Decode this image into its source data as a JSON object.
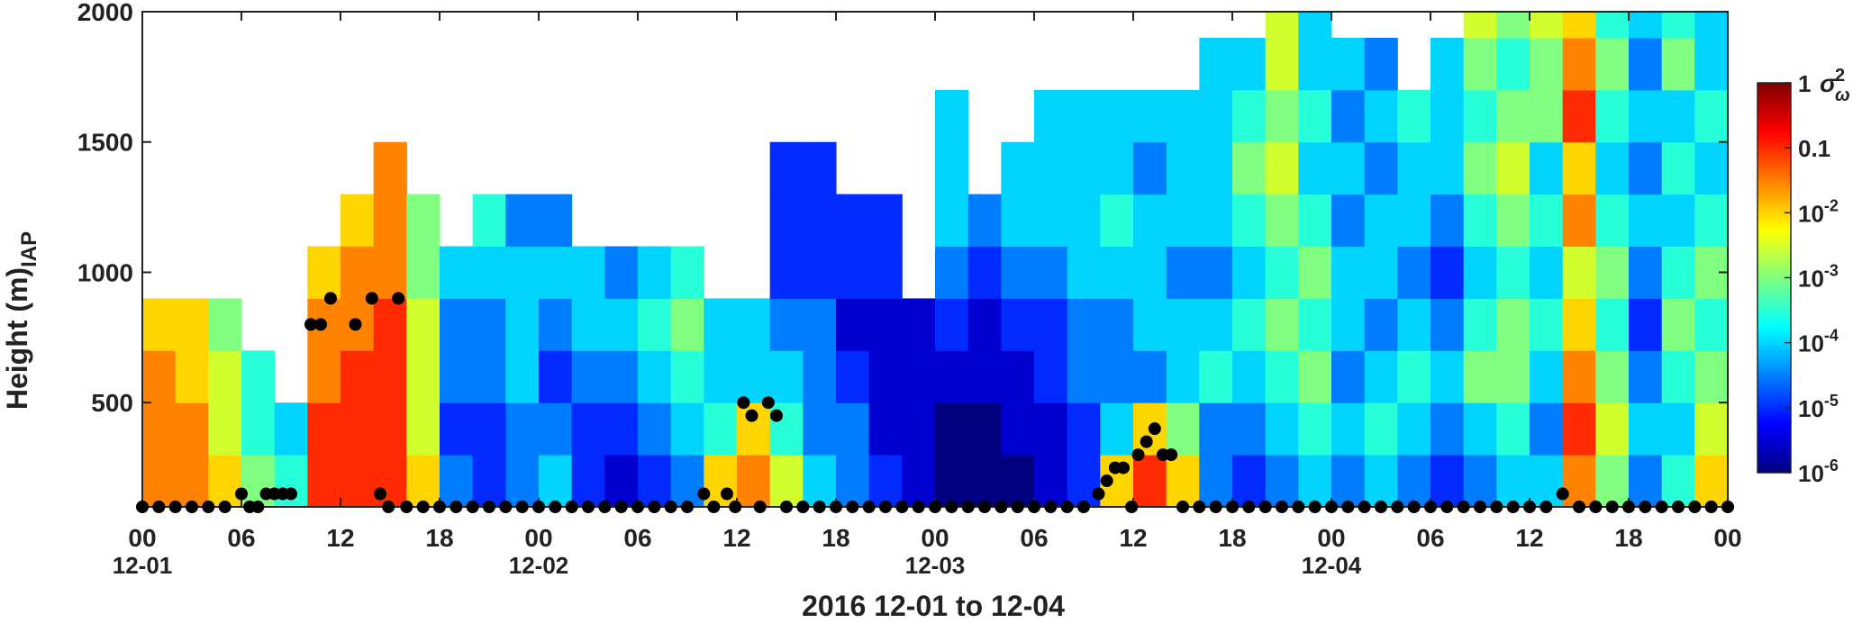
{
  "chart_data": {
    "type": "heatmap",
    "xlabel": "2016 12-01 to 12-04",
    "ylabel": "Height (m)",
    "ylabel_sub": "IAP",
    "xlim": [
      0,
      96
    ],
    "ylim": [
      100,
      2000
    ],
    "yticks": [
      500,
      1000,
      1500,
      2000
    ],
    "xticks": [
      {
        "value": 0,
        "label": "00"
      },
      {
        "value": 6,
        "label": "06"
      },
      12,
      18,
      {
        "value": 24,
        "label": "00"
      },
      {
        "value": 30,
        "label": "06"
      },
      {
        "value": 36,
        "label": "12"
      },
      {
        "value": 42,
        "label": "18"
      },
      {
        "value": 48,
        "label": "00"
      },
      {
        "value": 54,
        "label": "06"
      },
      {
        "value": 60,
        "label": "12"
      },
      {
        "value": 66,
        "label": "18"
      },
      {
        "value": 72,
        "label": "00"
      },
      {
        "value": 78,
        "label": "06"
      },
      {
        "value": 84,
        "label": "12"
      },
      {
        "value": 90,
        "label": "18"
      },
      {
        "value": 96,
        "label": "00"
      }
    ],
    "date_labels": [
      {
        "value": 0,
        "label": "12-01"
      },
      {
        "value": 24,
        "label": "12-02"
      },
      {
        "value": 48,
        "label": "12-03"
      },
      {
        "value": 72,
        "label": "12-04"
      }
    ],
    "colorbar": {
      "scale": "log",
      "clim": [
        1e-06,
        1
      ],
      "label": {
        "base": "σ",
        "sub": "ω",
        "sup": "2"
      },
      "ticks": [
        1,
        0.1,
        {
          "value": 0.01,
          "label": "10",
          "sup": "-2"
        },
        {
          "value": 0.001,
          "label": "10",
          "sup": "-3"
        },
        {
          "value": 0.0001,
          "label": "10",
          "sup": "-4"
        },
        {
          "value": 1e-05,
          "label": "10",
          "sup": "-5"
        },
        {
          "value": 1e-06,
          "label": "10",
          "sup": "-6"
        }
      ]
    },
    "x_bins": [
      0,
      2,
      4,
      6,
      8,
      10,
      12,
      14,
      16,
      18,
      20,
      22,
      24,
      26,
      28,
      30,
      32,
      34,
      36,
      38,
      40,
      42,
      44,
      46,
      48,
      50,
      52,
      54,
      56,
      58,
      60,
      62,
      64,
      66,
      68,
      70,
      72,
      74,
      76,
      78,
      80,
      82,
      84,
      86,
      88,
      90,
      92,
      94,
      96
    ],
    "y_bins": [
      100,
      300,
      500,
      700,
      900,
      1100,
      1300,
      1500,
      1700,
      1900,
      2000
    ],
    "values": [
      [
        0.03,
        0.03,
        0.03,
        0.01,
        null,
        null,
        null,
        null,
        null,
        null
      ],
      [
        0.03,
        0.03,
        0.01,
        0.01,
        null,
        null,
        null,
        null,
        null,
        null
      ],
      [
        0.01,
        0.003,
        0.003,
        0.001,
        null,
        null,
        null,
        null,
        null,
        null
      ],
      [
        0.001,
        0.0003,
        0.0003,
        null,
        null,
        null,
        null,
        null,
        null,
        null
      ],
      [
        0.0003,
        0.0001,
        null,
        null,
        null,
        null,
        null,
        null,
        null,
        null
      ],
      [
        0.1,
        0.1,
        0.03,
        0.03,
        0.01,
        null,
        null,
        null,
        null,
        null
      ],
      [
        0.1,
        0.1,
        0.1,
        0.03,
        0.03,
        0.01,
        null,
        null,
        null,
        null
      ],
      [
        0.1,
        0.1,
        0.1,
        0.1,
        0.03,
        0.03,
        0.03,
        null,
        null,
        null
      ],
      [
        0.01,
        0.003,
        0.003,
        0.003,
        0.001,
        0.001,
        null,
        null,
        null,
        null
      ],
      [
        3e-05,
        1e-05,
        3e-05,
        3e-05,
        0.0001,
        null,
        null,
        null,
        null,
        null
      ],
      [
        1e-05,
        1e-05,
        3e-05,
        3e-05,
        0.0001,
        0.0003,
        null,
        null,
        null,
        null
      ],
      [
        3e-05,
        3e-05,
        0.0001,
        0.0001,
        0.0001,
        3e-05,
        null,
        null,
        null,
        null
      ],
      [
        0.0001,
        3e-05,
        1e-05,
        3e-05,
        0.0001,
        3e-05,
        null,
        null,
        null,
        null
      ],
      [
        1e-05,
        1e-05,
        3e-05,
        0.0001,
        0.0001,
        null,
        null,
        null,
        null,
        null
      ],
      [
        3e-06,
        1e-05,
        3e-05,
        0.0001,
        3e-05,
        null,
        null,
        null,
        null,
        null
      ],
      [
        1e-05,
        3e-05,
        0.0001,
        0.0003,
        0.0001,
        null,
        null,
        null,
        null,
        null
      ],
      [
        3e-05,
        0.0001,
        0.0003,
        0.001,
        0.0003,
        null,
        null,
        null,
        null,
        null
      ],
      [
        0.01,
        0.0003,
        0.0001,
        0.0001,
        null,
        null,
        null,
        null,
        null,
        null
      ],
      [
        0.03,
        0.01,
        0.0001,
        0.0001,
        null,
        null,
        null,
        null,
        null,
        null
      ],
      [
        0.003,
        0.0003,
        0.0001,
        3e-05,
        1e-05,
        1e-05,
        1e-05,
        null,
        null,
        null
      ],
      [
        0.0001,
        3e-05,
        3e-05,
        3e-05,
        1e-05,
        1e-05,
        1e-05,
        null,
        null,
        null
      ],
      [
        3e-05,
        3e-05,
        1e-05,
        3e-06,
        1e-05,
        1e-05,
        null,
        null,
        null,
        null
      ],
      [
        1e-05,
        3e-06,
        3e-06,
        3e-06,
        1e-05,
        1e-05,
        null,
        null,
        null,
        null
      ],
      [
        3e-06,
        3e-06,
        3e-06,
        3e-06,
        null,
        null,
        null,
        null,
        null,
        null
      ],
      [
        1e-06,
        1e-06,
        3e-06,
        1e-05,
        3e-05,
        0.0001,
        0.0001,
        0.0001,
        null,
        null
      ],
      [
        1e-06,
        1e-06,
        3e-06,
        3e-06,
        1e-05,
        3e-05,
        null,
        null,
        null,
        null
      ],
      [
        1e-06,
        3e-06,
        3e-06,
        1e-05,
        3e-05,
        0.0001,
        0.0001,
        null,
        null,
        null
      ],
      [
        3e-06,
        3e-06,
        1e-05,
        1e-05,
        3e-05,
        0.0001,
        0.0001,
        0.0001,
        null,
        null
      ],
      [
        1e-05,
        1e-05,
        3e-05,
        3e-05,
        0.0001,
        0.0001,
        0.0001,
        0.0001,
        null,
        null
      ],
      [
        0.01,
        0.0001,
        3e-05,
        3e-05,
        0.0001,
        0.0003,
        0.0001,
        0.0001,
        null,
        null
      ],
      [
        0.1,
        0.01,
        3e-05,
        0.0001,
        0.0001,
        0.0001,
        3e-05,
        0.0001,
        null,
        null
      ],
      [
        0.01,
        0.001,
        0.0001,
        0.0001,
        3e-05,
        0.0001,
        0.0001,
        0.0001,
        null,
        null
      ],
      [
        3e-05,
        3e-05,
        0.0003,
        0.0001,
        3e-05,
        0.0001,
        0.0001,
        0.0001,
        0.0001,
        null
      ],
      [
        1e-05,
        3e-05,
        0.0001,
        0.0003,
        0.0001,
        0.0003,
        0.001,
        0.0003,
        0.0001,
        null
      ],
      [
        3e-05,
        0.0001,
        0.0003,
        0.001,
        0.0003,
        0.001,
        0.003,
        0.001,
        0.003,
        0.003
      ],
      [
        0.0001,
        0.0003,
        0.001,
        0.0003,
        0.001,
        0.0003,
        0.0001,
        0.0003,
        0.0001,
        0.0001
      ],
      [
        3e-05,
        0.0001,
        3e-05,
        0.0001,
        0.0001,
        3e-05,
        0.0001,
        3e-05,
        0.0001,
        null
      ],
      [
        0.0001,
        0.0003,
        0.0001,
        3e-05,
        0.0001,
        0.0001,
        3e-05,
        0.0001,
        3e-05,
        null
      ],
      [
        3e-05,
        0.0001,
        0.0003,
        0.0001,
        3e-05,
        0.0001,
        0.0001,
        0.0003,
        null,
        null
      ],
      [
        1e-05,
        3e-05,
        0.0001,
        3e-05,
        1e-05,
        3e-05,
        0.0001,
        0.0001,
        0.0001,
        null
      ],
      [
        3e-05,
        0.0001,
        0.001,
        0.0003,
        0.0001,
        0.0003,
        0.001,
        0.0003,
        0.001,
        0.003
      ],
      [
        0.0001,
        0.0003,
        0.001,
        0.001,
        0.0003,
        0.001,
        0.003,
        0.001,
        0.0003,
        0.001
      ],
      [
        0.0001,
        3e-05,
        0.0001,
        0.0003,
        0.0001,
        0.0003,
        0.0001,
        0.001,
        0.001,
        0.003
      ],
      [
        0.03,
        0.1,
        0.03,
        0.01,
        0.003,
        0.03,
        0.01,
        0.1,
        0.03,
        0.01
      ],
      [
        0.001,
        0.003,
        0.001,
        0.0003,
        0.001,
        0.0003,
        0.0001,
        0.0003,
        0.001,
        0.0003
      ],
      [
        3e-05,
        0.0001,
        3e-05,
        1e-05,
        3e-05,
        0.0001,
        3e-05,
        0.0001,
        3e-05,
        0.0001
      ],
      [
        0.0003,
        0.0001,
        0.0003,
        0.001,
        0.0003,
        0.0001,
        0.0003,
        0.0001,
        0.001,
        0.0003
      ],
      [
        0.01,
        0.003,
        0.001,
        0.0003,
        0.001,
        0.0003,
        0.0001,
        0.0003,
        0.0001,
        0.0001
      ]
    ],
    "points": {
      "color": "#000000",
      "x": [
        0,
        1,
        2,
        3,
        4,
        5,
        6,
        6.5,
        7,
        7.5,
        8,
        8.5,
        9,
        10.2,
        10.8,
        11.4,
        12.9,
        13.9,
        14.4,
        14.9,
        15.5,
        16,
        17,
        18,
        19,
        20,
        21,
        22,
        23,
        24,
        25,
        26,
        27,
        28,
        29,
        30,
        31,
        32,
        33,
        34,
        34.6,
        35.4,
        35.9,
        36.4,
        36.9,
        37.4,
        37.9,
        38.4,
        39,
        40,
        41,
        42,
        43,
        44,
        45,
        46,
        47,
        48,
        49,
        50,
        51,
        52,
        53,
        54,
        55,
        56,
        57,
        57.9,
        58.4,
        58.9,
        59.4,
        59.9,
        60.3,
        60.8,
        61.3,
        61.8,
        62.3,
        63,
        64,
        65,
        66,
        67,
        68,
        69,
        70,
        71,
        72,
        73,
        74,
        75,
        76,
        77,
        78,
        79,
        80,
        81,
        82,
        83,
        84,
        85,
        86,
        87,
        88,
        89,
        90,
        91,
        92,
        93,
        94,
        95,
        96
      ],
      "y": [
        100,
        100,
        100,
        100,
        100,
        100,
        150,
        100,
        100,
        150,
        150,
        150,
        150,
        800,
        800,
        900,
        800,
        900,
        150,
        100,
        900,
        100,
        100,
        100,
        100,
        100,
        100,
        100,
        100,
        100,
        100,
        100,
        100,
        100,
        100,
        100,
        100,
        100,
        100,
        150,
        100,
        150,
        100,
        500,
        450,
        100,
        500,
        450,
        100,
        100,
        100,
        100,
        100,
        100,
        100,
        100,
        100,
        100,
        100,
        100,
        100,
        100,
        100,
        100,
        100,
        100,
        100,
        150,
        200,
        250,
        250,
        100,
        300,
        350,
        400,
        300,
        300,
        100,
        100,
        100,
        100,
        100,
        100,
        100,
        100,
        100,
        100,
        100,
        100,
        100,
        100,
        100,
        100,
        100,
        100,
        100,
        100,
        100,
        100,
        100,
        150,
        100,
        100,
        100,
        100,
        100,
        100,
        100,
        100,
        100,
        100
      ]
    }
  }
}
